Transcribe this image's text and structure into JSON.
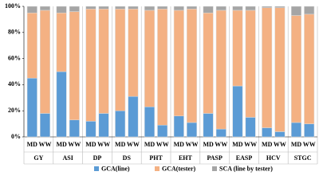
{
  "chart_data": {
    "type": "stacked_bar",
    "groups": [
      "GY",
      "ASI",
      "DP",
      "DS",
      "PHT",
      "EHT",
      "PASP",
      "EASP",
      "HCV",
      "STGC"
    ],
    "categories": [
      "MD",
      "WW",
      "MD",
      "WW",
      "MD",
      "WW",
      "MD",
      "WW",
      "MD",
      "WW",
      "MD",
      "WW",
      "MD",
      "WW",
      "MD",
      "WW",
      "MD",
      "WW",
      "MD",
      "WW"
    ],
    "series": [
      {
        "name": "GCA(line)",
        "color": "#5b9bd5",
        "values": [
          45,
          18,
          50,
          13,
          12,
          18,
          20,
          31,
          23,
          9,
          16,
          11,
          18,
          6,
          39,
          15,
          7,
          4,
          11,
          10
        ]
      },
      {
        "name": "GCA(tester)",
        "color": "#f4b183",
        "values": [
          50,
          79,
          45,
          83,
          86,
          80,
          78,
          67,
          74,
          89,
          81,
          87,
          77,
          91,
          58,
          82,
          92,
          95,
          82,
          84
        ]
      },
      {
        "name": "SCA (line by tester)",
        "color": "#a5a5a5",
        "values": [
          5,
          3,
          5,
          4,
          2,
          2,
          2,
          2,
          3,
          2,
          3,
          2,
          5,
          3,
          3,
          3,
          1,
          1,
          7,
          6
        ]
      }
    ],
    "ylim": [
      0,
      100
    ],
    "yticks": [
      {
        "value": 0,
        "label": "0%"
      },
      {
        "value": 20,
        "label": "20%"
      },
      {
        "value": 40,
        "label": "40%"
      },
      {
        "value": 60,
        "label": "60%"
      },
      {
        "value": 80,
        "label": "80%"
      },
      {
        "value": 100,
        "label": "100%"
      }
    ]
  }
}
